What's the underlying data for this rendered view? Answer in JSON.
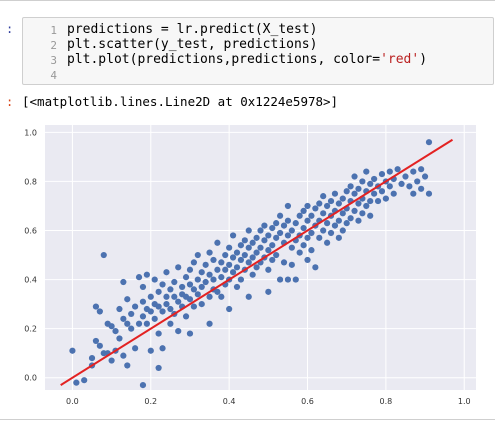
{
  "input_prompt": ":",
  "output_prompt": ":",
  "code": {
    "line_numbers": [
      "1",
      "2",
      "3",
      "4"
    ],
    "lines": [
      {
        "before": "predictions = lr.predict(X_test)",
        "string": "",
        "after": ""
      },
      {
        "before": "plt.scatter(y_test, predictions)",
        "string": "",
        "after": ""
      },
      {
        "before": "plt.plot(predictions,predictions, color=",
        "string": "'red'",
        "after": ")"
      },
      {
        "before": "",
        "string": "",
        "after": ""
      }
    ]
  },
  "output_text": "[<matplotlib.lines.Line2D at 0x1224e5978>]",
  "colors": {
    "plot_background": "#eaeaf2",
    "grid": "#ffffff",
    "scatter": "#4c72b0",
    "line": "#e32222"
  },
  "chart_data": {
    "type": "scatter",
    "title": "",
    "xlabel": "",
    "ylabel": "",
    "xlim": [
      -0.07,
      1.03
    ],
    "ylim": [
      -0.05,
      1.03
    ],
    "x_ticks": [
      0.0,
      0.2,
      0.4,
      0.6,
      0.8,
      1.0
    ],
    "x_tick_labels": [
      "0.0",
      "0.2",
      "0.4",
      "0.6",
      "0.8",
      "1.0"
    ],
    "y_ticks": [
      0.0,
      0.2,
      0.4,
      0.6,
      0.8,
      1.0
    ],
    "y_tick_labels": [
      "0.0",
      "0.2",
      "0.4",
      "0.6",
      "0.8",
      "1.0"
    ],
    "grid": true,
    "line": {
      "x": [
        -0.03,
        0.97
      ],
      "y": [
        -0.03,
        0.97
      ]
    },
    "points": [
      [
        0.0,
        0.11
      ],
      [
        0.01,
        -0.02
      ],
      [
        0.03,
        -0.01
      ],
      [
        0.05,
        0.08
      ],
      [
        0.05,
        0.05
      ],
      [
        0.06,
        0.15
      ],
      [
        0.06,
        0.29
      ],
      [
        0.07,
        0.27
      ],
      [
        0.07,
        0.13
      ],
      [
        0.08,
        0.1
      ],
      [
        0.08,
        0.5
      ],
      [
        0.09,
        0.1
      ],
      [
        0.09,
        0.22
      ],
      [
        0.1,
        0.21
      ],
      [
        0.1,
        0.07
      ],
      [
        0.11,
        0.11
      ],
      [
        0.11,
        0.19
      ],
      [
        0.12,
        0.28
      ],
      [
        0.12,
        0.16
      ],
      [
        0.13,
        0.24
      ],
      [
        0.13,
        0.09
      ],
      [
        0.13,
        0.39
      ],
      [
        0.14,
        0.22
      ],
      [
        0.14,
        0.32
      ],
      [
        0.15,
        0.26
      ],
      [
        0.15,
        0.2
      ],
      [
        0.16,
        0.12
      ],
      [
        0.16,
        0.29
      ],
      [
        0.17,
        0.41
      ],
      [
        0.17,
        0.22
      ],
      [
        0.18,
        0.31
      ],
      [
        0.18,
        0.25
      ],
      [
        0.18,
        0.37
      ],
      [
        0.19,
        0.28
      ],
      [
        0.19,
        0.22
      ],
      [
        0.19,
        0.42
      ],
      [
        0.2,
        0.33
      ],
      [
        0.2,
        0.27
      ],
      [
        0.2,
        0.11
      ],
      [
        0.21,
        0.3
      ],
      [
        0.21,
        0.24
      ],
      [
        0.21,
        0.4
      ],
      [
        0.22,
        0.35
      ],
      [
        0.22,
        0.29
      ],
      [
        0.22,
        0.18
      ],
      [
        0.23,
        0.38
      ],
      [
        0.23,
        0.27
      ],
      [
        0.23,
        0.12
      ],
      [
        0.24,
        0.33
      ],
      [
        0.24,
        0.3
      ],
      [
        0.24,
        0.43
      ],
      [
        0.25,
        0.36
      ],
      [
        0.25,
        0.28
      ],
      [
        0.25,
        0.22
      ],
      [
        0.26,
        0.39
      ],
      [
        0.26,
        0.33
      ],
      [
        0.26,
        0.26
      ],
      [
        0.27,
        0.31
      ],
      [
        0.27,
        0.45
      ],
      [
        0.27,
        0.19
      ],
      [
        0.28,
        0.37
      ],
      [
        0.28,
        0.34
      ],
      [
        0.28,
        0.29
      ],
      [
        0.29,
        0.41
      ],
      [
        0.29,
        0.33
      ],
      [
        0.29,
        0.25
      ],
      [
        0.3,
        0.44
      ],
      [
        0.3,
        0.38
      ],
      [
        0.3,
        0.32
      ],
      [
        0.31,
        0.36
      ],
      [
        0.31,
        0.47
      ],
      [
        0.31,
        0.29
      ],
      [
        0.32,
        0.4
      ],
      [
        0.32,
        0.34
      ],
      [
        0.32,
        0.5
      ],
      [
        0.33,
        0.43
      ],
      [
        0.33,
        0.37
      ],
      [
        0.33,
        0.3
      ],
      [
        0.34,
        0.46
      ],
      [
        0.34,
        0.39
      ],
      [
        0.35,
        0.33
      ],
      [
        0.35,
        0.51
      ],
      [
        0.35,
        0.42
      ],
      [
        0.36,
        0.36
      ],
      [
        0.36,
        0.48
      ],
      [
        0.36,
        0.4
      ],
      [
        0.37,
        0.44
      ],
      [
        0.37,
        0.35
      ],
      [
        0.37,
        0.55
      ],
      [
        0.38,
        0.47
      ],
      [
        0.38,
        0.41
      ],
      [
        0.38,
        0.33
      ],
      [
        0.39,
        0.5
      ],
      [
        0.39,
        0.44
      ],
      [
        0.39,
        0.38
      ],
      [
        0.4,
        0.53
      ],
      [
        0.4,
        0.46
      ],
      [
        0.4,
        0.4
      ],
      [
        0.41,
        0.49
      ],
      [
        0.41,
        0.43
      ],
      [
        0.41,
        0.58
      ],
      [
        0.42,
        0.51
      ],
      [
        0.42,
        0.45
      ],
      [
        0.42,
        0.37
      ],
      [
        0.43,
        0.54
      ],
      [
        0.43,
        0.48
      ],
      [
        0.43,
        0.4
      ],
      [
        0.44,
        0.56
      ],
      [
        0.44,
        0.5
      ],
      [
        0.44,
        0.44
      ],
      [
        0.45,
        0.53
      ],
      [
        0.45,
        0.47
      ],
      [
        0.45,
        0.6
      ],
      [
        0.46,
        0.55
      ],
      [
        0.46,
        0.49
      ],
      [
        0.46,
        0.42
      ],
      [
        0.47,
        0.57
      ],
      [
        0.47,
        0.51
      ],
      [
        0.47,
        0.45
      ],
      [
        0.48,
        0.6
      ],
      [
        0.48,
        0.53
      ],
      [
        0.48,
        0.47
      ],
      [
        0.49,
        0.62
      ],
      [
        0.49,
        0.56
      ],
      [
        0.49,
        0.49
      ],
      [
        0.5,
        0.58
      ],
      [
        0.5,
        0.52
      ],
      [
        0.5,
        0.44
      ],
      [
        0.51,
        0.61
      ],
      [
        0.51,
        0.54
      ],
      [
        0.51,
        0.48
      ],
      [
        0.52,
        0.63
      ],
      [
        0.52,
        0.57
      ],
      [
        0.52,
        0.5
      ],
      [
        0.53,
        0.66
      ],
      [
        0.53,
        0.59
      ],
      [
        0.53,
        0.4
      ],
      [
        0.54,
        0.62
      ],
      [
        0.54,
        0.55
      ],
      [
        0.54,
        0.47
      ],
      [
        0.55,
        0.64
      ],
      [
        0.55,
        0.58
      ],
      [
        0.55,
        0.7
      ],
      [
        0.56,
        0.6
      ],
      [
        0.56,
        0.53
      ],
      [
        0.56,
        0.46
      ],
      [
        0.57,
        0.63
      ],
      [
        0.57,
        0.56
      ],
      [
        0.57,
        0.4
      ],
      [
        0.58,
        0.66
      ],
      [
        0.58,
        0.58
      ],
      [
        0.58,
        0.51
      ],
      [
        0.59,
        0.68
      ],
      [
        0.59,
        0.61
      ],
      [
        0.59,
        0.54
      ],
      [
        0.6,
        0.64
      ],
      [
        0.6,
        0.57
      ],
      [
        0.6,
        0.7
      ],
      [
        0.61,
        0.66
      ],
      [
        0.61,
        0.59
      ],
      [
        0.61,
        0.52
      ],
      [
        0.62,
        0.69
      ],
      [
        0.62,
        0.62
      ],
      [
        0.62,
        0.45
      ],
      [
        0.63,
        0.71
      ],
      [
        0.63,
        0.64
      ],
      [
        0.63,
        0.57
      ],
      [
        0.64,
        0.67
      ],
      [
        0.64,
        0.6
      ],
      [
        0.64,
        0.74
      ],
      [
        0.65,
        0.7
      ],
      [
        0.65,
        0.63
      ],
      [
        0.65,
        0.55
      ],
      [
        0.66,
        0.72
      ],
      [
        0.66,
        0.66
      ],
      [
        0.66,
        0.59
      ],
      [
        0.67,
        0.75
      ],
      [
        0.67,
        0.68
      ],
      [
        0.67,
        0.62
      ],
      [
        0.68,
        0.71
      ],
      [
        0.68,
        0.64
      ],
      [
        0.68,
        0.57
      ],
      [
        0.69,
        0.73
      ],
      [
        0.69,
        0.67
      ],
      [
        0.69,
        0.6
      ],
      [
        0.7,
        0.76
      ],
      [
        0.7,
        0.69
      ],
      [
        0.7,
        0.63
      ],
      [
        0.71,
        0.78
      ],
      [
        0.71,
        0.72
      ],
      [
        0.71,
        0.65
      ],
      [
        0.72,
        0.75
      ],
      [
        0.72,
        0.68
      ],
      [
        0.72,
        0.82
      ],
      [
        0.73,
        0.77
      ],
      [
        0.73,
        0.71
      ],
      [
        0.73,
        0.64
      ],
      [
        0.74,
        0.8
      ],
      [
        0.74,
        0.73
      ],
      [
        0.74,
        0.67
      ],
      [
        0.75,
        0.76
      ],
      [
        0.75,
        0.7
      ],
      [
        0.75,
        0.84
      ],
      [
        0.76,
        0.79
      ],
      [
        0.76,
        0.72
      ],
      [
        0.76,
        0.66
      ],
      [
        0.77,
        0.81
      ],
      [
        0.77,
        0.75
      ],
      [
        0.78,
        0.78
      ],
      [
        0.78,
        0.72
      ],
      [
        0.79,
        0.83
      ],
      [
        0.79,
        0.76
      ],
      [
        0.8,
        0.8
      ],
      [
        0.8,
        0.73
      ],
      [
        0.81,
        0.84
      ],
      [
        0.81,
        0.78
      ],
      [
        0.82,
        0.81
      ],
      [
        0.82,
        0.75
      ],
      [
        0.83,
        0.85
      ],
      [
        0.84,
        0.79
      ],
      [
        0.85,
        0.82
      ],
      [
        0.86,
        0.78
      ],
      [
        0.87,
        0.84
      ],
      [
        0.88,
        0.8
      ],
      [
        0.89,
        0.77
      ],
      [
        0.9,
        0.82
      ],
      [
        0.91,
        0.96
      ],
      [
        0.91,
        0.75
      ],
      [
        0.89,
        0.85
      ],
      [
        0.87,
        0.75
      ],
      [
        0.18,
        -0.03
      ],
      [
        0.22,
        0.04
      ],
      [
        0.14,
        0.05
      ],
      [
        0.35,
        0.22
      ],
      [
        0.4,
        0.28
      ],
      [
        0.45,
        0.33
      ],
      [
        0.3,
        0.18
      ],
      [
        0.5,
        0.35
      ],
      [
        0.55,
        0.4
      ],
      [
        0.6,
        0.48
      ]
    ]
  }
}
